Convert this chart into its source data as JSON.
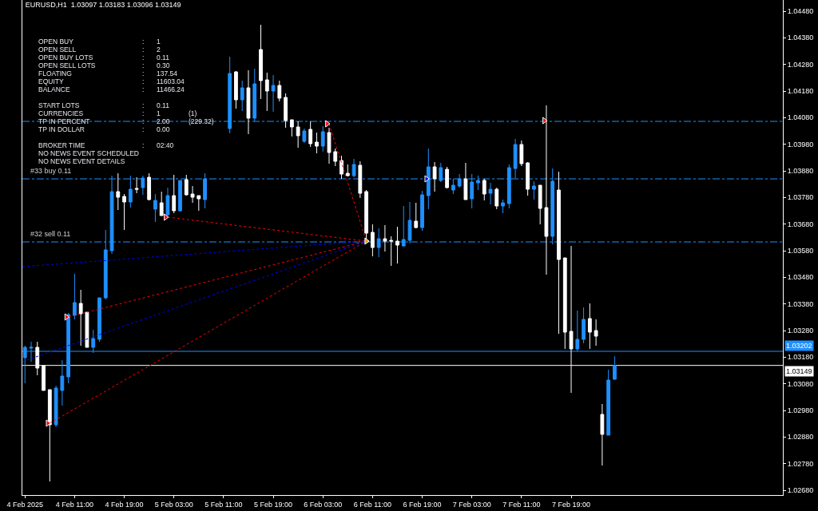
{
  "chart_data": {
    "type": "candlestick",
    "title": "EURUSD,H1  1.03097 1.03183 1.03096 1.03149",
    "x": [
      "2025-02-04T03:00",
      "2025-02-04T04:00",
      "2025-02-04T05:00",
      "2025-02-04T06:00",
      "2025-02-04T07:00",
      "2025-02-04T08:00",
      "2025-02-04T09:00",
      "2025-02-04T10:00",
      "2025-02-04T11:00",
      "2025-02-04T12:00",
      "2025-02-04T13:00",
      "2025-02-04T14:00",
      "2025-02-04T15:00",
      "2025-02-04T16:00",
      "2025-02-04T17:00",
      "2025-02-04T18:00",
      "2025-02-04T19:00",
      "2025-02-04T20:00",
      "2025-02-04T21:00",
      "2025-02-04T22:00",
      "2025-02-04T23:00",
      "2025-02-05T00:00",
      "2025-02-05T01:00",
      "2025-02-05T02:00",
      "2025-02-05T03:00",
      "2025-02-05T04:00",
      "2025-02-05T05:00",
      "2025-02-05T06:00",
      "2025-02-05T07:00",
      "2025-02-05T08:00",
      "2025-02-05T12:00",
      "2025-02-05T13:00",
      "2025-02-05T14:00",
      "2025-02-05T15:00",
      "2025-02-05T16:00",
      "2025-02-05T17:00",
      "2025-02-05T18:00",
      "2025-02-05T19:00",
      "2025-02-05T20:00",
      "2025-02-05T21:00",
      "2025-02-05T22:00",
      "2025-02-05T23:00",
      "2025-02-06T00:00",
      "2025-02-06T01:00",
      "2025-02-06T02:00",
      "2025-02-06T03:00",
      "2025-02-06T04:00",
      "2025-02-06T05:00",
      "2025-02-06T06:00",
      "2025-02-06T07:00",
      "2025-02-06T08:00",
      "2025-02-06T09:00",
      "2025-02-06T10:00",
      "2025-02-06T11:00",
      "2025-02-06T12:00",
      "2025-02-06T13:00",
      "2025-02-06T14:00",
      "2025-02-06T15:00",
      "2025-02-06T16:00",
      "2025-02-06T17:00",
      "2025-02-06T18:00",
      "2025-02-06T19:00",
      "2025-02-06T20:00",
      "2025-02-06T21:00",
      "2025-02-06T22:00",
      "2025-02-06T23:00",
      "2025-02-07T00:00",
      "2025-02-07T01:00",
      "2025-02-07T02:00",
      "2025-02-07T03:00",
      "2025-02-07T04:00",
      "2025-02-07T05:00",
      "2025-02-07T06:00",
      "2025-02-07T07:00",
      "2025-02-07T08:00",
      "2025-02-07T09:00",
      "2025-02-07T10:00",
      "2025-02-07T11:00",
      "2025-02-07T12:00",
      "2025-02-07T13:00",
      "2025-02-07T14:00",
      "2025-02-07T15:00",
      "2025-02-07T16:00",
      "2025-02-07T17:00",
      "2025-02-07T18:00",
      "2025-02-07T19:00",
      "2025-02-07T20:00",
      "2025-02-07T21:00",
      "2025-02-07T22:00",
      "2025-02-07T23:00",
      "2025-02-08T00:00",
      "2025-02-08T01:00",
      "2025-02-08T02:00"
    ],
    "ohlc": [
      [
        1.03178,
        1.03223,
        1.03082,
        1.03217
      ],
      [
        1.03214,
        1.03238,
        1.03163,
        1.03217
      ],
      [
        1.03217,
        1.03238,
        1.03112,
        1.03139
      ],
      [
        1.03148,
        1.03148,
        1.03055,
        1.03055
      ],
      [
        1.03058,
        1.03058,
        1.02713,
        1.02926
      ],
      [
        1.02926,
        1.03073,
        1.02917,
        1.03064
      ],
      [
        1.03055,
        1.03169,
        1.02998,
        1.03109
      ],
      [
        1.03106,
        1.03346,
        1.03082,
        1.0334
      ],
      [
        1.03337,
        1.03493,
        1.03322,
        1.03385
      ],
      [
        1.03382,
        1.03433,
        1.03223,
        1.03343
      ],
      [
        1.03349,
        1.03349,
        1.03217,
        1.03217
      ],
      [
        1.03217,
        1.03283,
        1.03196,
        1.0325
      ],
      [
        1.03247,
        1.03403,
        1.03238,
        1.03403
      ],
      [
        1.03403,
        1.03658,
        1.03397,
        1.03583
      ],
      [
        1.0358,
        1.03862,
        1.03568,
        1.03802
      ],
      [
        1.03802,
        1.03871,
        1.03733,
        1.03781
      ],
      [
        1.03784,
        1.03793,
        1.03658,
        1.03763
      ],
      [
        1.03763,
        1.03862,
        1.03742,
        1.03811
      ],
      [
        1.03814,
        1.03856,
        1.03796,
        1.03811
      ],
      [
        1.03817,
        1.03862,
        1.0379,
        1.03853
      ],
      [
        1.03856,
        1.03871,
        1.03769,
        1.03772
      ],
      [
        1.03736,
        1.03793,
        1.03688,
        1.03769
      ],
      [
        1.0376,
        1.03802,
        1.03712,
        1.03712
      ],
      [
        1.03715,
        1.03817,
        1.03703,
        1.03787
      ],
      [
        1.03787,
        1.03865,
        1.03721,
        1.0373
      ],
      [
        1.0373,
        1.03844,
        1.03727,
        1.03844
      ],
      [
        1.03847,
        1.03865,
        1.03787,
        1.0379
      ],
      [
        1.03793,
        1.03823,
        1.0376,
        1.03781
      ],
      [
        1.03787,
        1.03787,
        1.0373,
        1.03775
      ],
      [
        1.03772,
        1.03871,
        1.03739,
        1.0385
      ],
      [
        1.04039,
        1.04309,
        1.04021,
        1.04246
      ],
      [
        1.04252,
        1.04255,
        1.04114,
        1.04147
      ],
      [
        1.04147,
        1.04219,
        1.04105,
        1.04192
      ],
      [
        1.04192,
        1.04258,
        1.04018,
        1.04078
      ],
      [
        1.04078,
        1.04264,
        1.04066,
        1.04207
      ],
      [
        1.04336,
        1.04429,
        1.0415,
        1.04219
      ],
      [
        1.04222,
        1.04249,
        1.04105,
        1.0418
      ],
      [
        1.0418,
        1.0424,
        1.04102,
        1.04201
      ],
      [
        1.04201,
        1.04219,
        1.04141,
        1.04153
      ],
      [
        1.04156,
        1.04171,
        1.04042,
        1.04069
      ],
      [
        1.04072,
        1.04072,
        1.04009,
        1.04045
      ],
      [
        1.04045,
        1.04066,
        1.03967,
        1.04012
      ],
      [
        1.03991,
        1.04039,
        1.03985,
        1.0403
      ],
      [
        1.04036,
        1.04066,
        1.0397,
        1.03982
      ],
      [
        1.03988,
        1.04024,
        1.03946,
        1.03973
      ],
      [
        1.03973,
        1.04048,
        1.03952,
        1.04027
      ],
      [
        1.04024,
        1.04042,
        1.03907,
        1.03949
      ],
      [
        1.03952,
        1.03964,
        1.03898,
        1.03916
      ],
      [
        1.03919,
        1.03937,
        1.0385,
        1.03868
      ],
      [
        1.03871,
        1.03904,
        1.03859,
        1.03862
      ],
      [
        1.03862,
        1.03925,
        1.03856,
        1.03904
      ],
      [
        1.03901,
        1.03916,
        1.03778,
        1.03796
      ],
      [
        1.03802,
        1.03808,
        1.03616,
        1.03646
      ],
      [
        1.03649,
        1.03679,
        1.03559,
        1.03592
      ],
      [
        1.03592,
        1.03664,
        1.03556,
        1.03625
      ],
      [
        1.03625,
        1.03676,
        1.03577,
        1.03616
      ],
      [
        1.03619,
        1.03634,
        1.03523,
        1.03616
      ],
      [
        1.03616,
        1.0367,
        1.03532,
        1.03601
      ],
      [
        1.03598,
        1.03748,
        1.03595,
        1.03622
      ],
      [
        1.03619,
        1.03763,
        1.03607,
        1.03694
      ],
      [
        1.03691,
        1.0376,
        1.03664,
        1.03667
      ],
      [
        1.03667,
        1.03805,
        1.03655,
        1.0379
      ],
      [
        1.03787,
        1.03964,
        1.03736,
        1.03895
      ],
      [
        1.03895,
        1.03913,
        1.03802,
        1.0385
      ],
      [
        1.03844,
        1.0391,
        1.03838,
        1.03892
      ],
      [
        1.03886,
        1.03895,
        1.03814,
        1.03817
      ],
      [
        1.03808,
        1.0385,
        1.03793,
        1.03826
      ],
      [
        1.03823,
        1.03868,
        1.03817,
        1.0385
      ],
      [
        1.0385,
        1.0391,
        1.03772,
        1.03772
      ],
      [
        1.03775,
        1.03868,
        1.03739,
        1.03838
      ],
      [
        1.03835,
        1.03862,
        1.03808,
        1.03844
      ],
      [
        1.03844,
        1.0385,
        1.03769,
        1.03793
      ],
      [
        1.03796,
        1.03835,
        1.03754,
        1.03811
      ],
      [
        1.03811,
        1.03817,
        1.03736,
        1.03748
      ],
      [
        1.03748,
        1.03772,
        1.03721,
        1.0376
      ],
      [
        1.03757,
        1.03904,
        1.03739,
        1.03892
      ],
      [
        1.03889,
        1.04,
        1.03853,
        1.03979
      ],
      [
        1.03979,
        1.03994,
        1.03898,
        1.03907
      ],
      [
        1.0391,
        1.03913,
        1.03787,
        1.03811
      ],
      [
        1.03811,
        1.03841,
        1.03772,
        1.03823
      ],
      [
        1.03826,
        1.03826,
        1.03679,
        1.03739
      ],
      [
        1.03742,
        1.04126,
        1.0349,
        1.03634
      ],
      [
        1.03634,
        1.03889,
        1.03604,
        1.03841
      ],
      [
        1.03808,
        1.03877,
        1.03268,
        1.03547
      ],
      [
        1.03553,
        1.03553,
        1.03211,
        1.03274
      ],
      [
        1.03277,
        1.03598,
        1.03046,
        1.03211
      ],
      [
        1.03211,
        1.03355,
        1.03202,
        1.03247
      ],
      [
        1.03247,
        1.03367,
        1.03232,
        1.03322
      ],
      [
        1.03325,
        1.03382,
        1.03211,
        1.03274
      ],
      [
        1.0328,
        1.03322,
        1.03223,
        1.03259
      ],
      [
        1.02965,
        1.03004,
        1.02773,
        1.0289
      ],
      [
        1.02887,
        1.03133,
        1.02887,
        1.03094
      ],
      [
        1.03097,
        1.03183,
        1.03096,
        1.03149
      ]
    ],
    "colors": [
      "#1e90ff",
      "#1e90ff",
      "#ffffff",
      "#ffffff",
      "#ffffff",
      "#1e90ff",
      "#1e90ff",
      "#1e90ff",
      "#1e90ff",
      "#ffffff",
      "#ffffff",
      "#1e90ff",
      "#1e90ff",
      "#1e90ff",
      "#1e90ff",
      "#ffffff",
      "#ffffff",
      "#1e90ff",
      "#ffffff",
      "#1e90ff",
      "#ffffff",
      "#1e90ff",
      "#ffffff",
      "#1e90ff",
      "#ffffff",
      "#1e90ff",
      "#ffffff",
      "#ffffff",
      "#ffffff",
      "#1e90ff",
      "#1e90ff",
      "#ffffff",
      "#1e90ff",
      "#ffffff",
      "#1e90ff",
      "#ffffff",
      "#ffffff",
      "#1e90ff",
      "#ffffff",
      "#ffffff",
      "#ffffff",
      "#ffffff",
      "#1e90ff",
      "#ffffff",
      "#ffffff",
      "#1e90ff",
      "#ffffff",
      "#ffffff",
      "#ffffff",
      "#ffffff",
      "#1e90ff",
      "#ffffff",
      "#ffffff",
      "#ffffff",
      "#1e90ff",
      "#ffffff",
      "#ffffff",
      "#ffffff",
      "#1e90ff",
      "#1e90ff",
      "#ffffff",
      "#1e90ff",
      "#1e90ff",
      "#ffffff",
      "#1e90ff",
      "#ffffff",
      "#1e90ff",
      "#1e90ff",
      "#ffffff",
      "#1e90ff",
      "#1e90ff",
      "#ffffff",
      "#1e90ff",
      "#ffffff",
      "#1e90ff",
      "#1e90ff",
      "#1e90ff",
      "#ffffff",
      "#ffffff",
      "#1e90ff",
      "#ffffff",
      "#ffffff",
      "#1e90ff",
      "#ffffff",
      "#ffffff",
      "#ffffff",
      "#1e90ff",
      "#1e90ff",
      "#ffffff",
      "#ffffff",
      "#ffffff",
      "#1e90ff",
      "#1e90ff"
    ],
    "series": [
      {
        "type": "line",
        "color": "#ff0000",
        "line_style": "dotted",
        "marker": "none",
        "x": [
          "2025-02-04T07:00",
          "2025-02-06T10:00"
        ],
        "values": [
          1.02932,
          1.03616
        ]
      },
      {
        "type": "line",
        "color": "#ff0000",
        "line_style": "dotted",
        "marker": "none",
        "x": [
          "2025-02-04T10:00",
          "2025-02-06T10:00"
        ],
        "values": [
          1.03331,
          1.03616
        ]
      },
      {
        "type": "line",
        "color": "#ff0000",
        "line_style": "dotted",
        "marker": "none",
        "x": [
          "2025-02-05T02:00",
          "2025-02-06T10:00"
        ],
        "values": [
          1.03706,
          1.03616
        ]
      },
      {
        "type": "line",
        "color": "#ff0000",
        "line_style": "dotted",
        "marker": "none",
        "x": [
          "2025-02-06T04:00",
          "2025-02-06T10:00"
        ],
        "values": [
          1.04057,
          1.03616
        ]
      },
      {
        "type": "line",
        "color": "#0000ff",
        "line_style": "dotted",
        "marker": "none",
        "x": [
          "2025-02-04T02:35",
          "2025-02-06T10:00"
        ],
        "values": [
          1.0352,
          1.03616
        ]
      },
      {
        "type": "line",
        "color": "#0000ff",
        "line_style": "dotted",
        "marker": "none",
        "x": [
          "2025-02-04T02:35",
          "2025-02-06T10:00"
        ],
        "values": [
          1.03163,
          1.03616
        ]
      },
      {
        "type": "scatter",
        "color": "#ff0000",
        "marker": "triangle",
        "x": [
          "2025-02-04T06:40",
          "2025-02-04T09:40",
          "2025-02-05T01:40",
          "2025-02-06T03:40",
          "2025-02-07T14:40"
        ],
        "values": [
          1.02932,
          1.03331,
          1.03706,
          1.04057,
          1.04069
        ]
      },
      {
        "type": "scatter",
        "color": "#0000ff",
        "marker": "triangle",
        "x": [
          "2025-02-06T19:40"
        ],
        "values": [
          1.0385
        ]
      },
      {
        "type": "scatter",
        "color": "#daa520",
        "marker": "triangle",
        "x": [
          "2025-02-06T10:00"
        ],
        "values": [
          1.03616
        ]
      }
    ],
    "xlim": [
      "2025-02-04T02:35",
      "2025-02-09T05:06"
    ],
    "xticks": [
      {
        "value": "2025-02-04T03:00",
        "label": "4 Feb 2025"
      },
      {
        "value": "2025-02-04T11:00",
        "label": "4 Feb 11:00"
      },
      {
        "value": "2025-02-04T19:00",
        "label": "4 Feb 19:00"
      },
      {
        "value": "2025-02-05T03:00",
        "label": "5 Feb 03:00"
      },
      {
        "value": "2025-02-05T11:00",
        "label": "5 Feb 11:00"
      },
      {
        "value": "2025-02-05T19:00",
        "label": "5 Feb 19:00"
      },
      {
        "value": "2025-02-06T03:00",
        "label": "6 Feb 03:00"
      },
      {
        "value": "2025-02-06T11:00",
        "label": "6 Feb 11:00"
      },
      {
        "value": "2025-02-06T19:00",
        "label": "6 Feb 19:00"
      },
      {
        "value": "2025-02-07T03:00",
        "label": "7 Feb 03:00"
      },
      {
        "value": "2025-02-07T11:00",
        "label": "7 Feb 11:00"
      },
      {
        "value": "2025-02-07T19:00",
        "label": "7 Feb 19:00"
      }
    ],
    "ylim": [
      1.02662,
      1.04522
    ],
    "yticks": [
      {
        "value": 1.0448,
        "label": "1.04480"
      },
      {
        "value": 1.0438,
        "label": "1.04380"
      },
      {
        "value": 1.0428,
        "label": "1.04280"
      },
      {
        "value": 1.0418,
        "label": "1.04180"
      },
      {
        "value": 1.0408,
        "label": "1.04080"
      },
      {
        "value": 1.0398,
        "label": "1.03980"
      },
      {
        "value": 1.0388,
        "label": "1.03880"
      },
      {
        "value": 1.0378,
        "label": "1.03780"
      },
      {
        "value": 1.0368,
        "label": "1.03680"
      },
      {
        "value": 1.0358,
        "label": "1.03580"
      },
      {
        "value": 1.0348,
        "label": "1.03480"
      },
      {
        "value": 1.0338,
        "label": "1.03380"
      },
      {
        "value": 1.0328,
        "label": "1.03280"
      },
      {
        "value": 1.0318,
        "label": "1.03180"
      },
      {
        "value": 1.0308,
        "label": "1.03080"
      },
      {
        "value": 1.0298,
        "label": "1.02980"
      },
      {
        "value": 1.0288,
        "label": "1.02880"
      },
      {
        "value": 1.0278,
        "label": "1.02780"
      },
      {
        "value": 1.0268,
        "label": "1.02680"
      }
    ],
    "ref_lines": [
      {
        "axis": "y",
        "value": 1.04066,
        "color": "#1e90ff",
        "line_style": "dashed"
      },
      {
        "axis": "y",
        "value": 1.0385,
        "label": "#33 buy 0.11",
        "color": "#1e90ff",
        "line_style": "dashed"
      },
      {
        "axis": "y",
        "value": 1.03613,
        "label": "#32 sell 0.11",
        "color": "#1e90ff",
        "line_style": "dashed"
      },
      {
        "axis": "y",
        "value": 1.03202,
        "label": "1.03202",
        "color": "#1e90ff",
        "line_style": "solid"
      },
      {
        "axis": "y",
        "value": 1.03149,
        "label": "1.03149",
        "color": "#ffffff",
        "line_style": "solid"
      }
    ],
    "annotations": [
      "OPEN BUY : 1",
      "OPEN SELL : 2",
      "OPEN BUY LOTS : 0.11",
      "OPEN SELL LOTS : 0.30",
      "FLOATING : 137.54",
      "EQUITY : 11603.04",
      "BALANCE : 11466.24",
      "START LOTS : 0.11",
      "CURRENCIES : 1 (1)",
      "TP IN PERCENT : 2.00 (229.32)",
      "TP IN DOLLAR : 0.00",
      "BROKER TIME : 02:40",
      "NO NEWS EVENT SCHEDULED",
      "NO NEWS EVENT DETAILS"
    ],
    "grid": false
  }
}
